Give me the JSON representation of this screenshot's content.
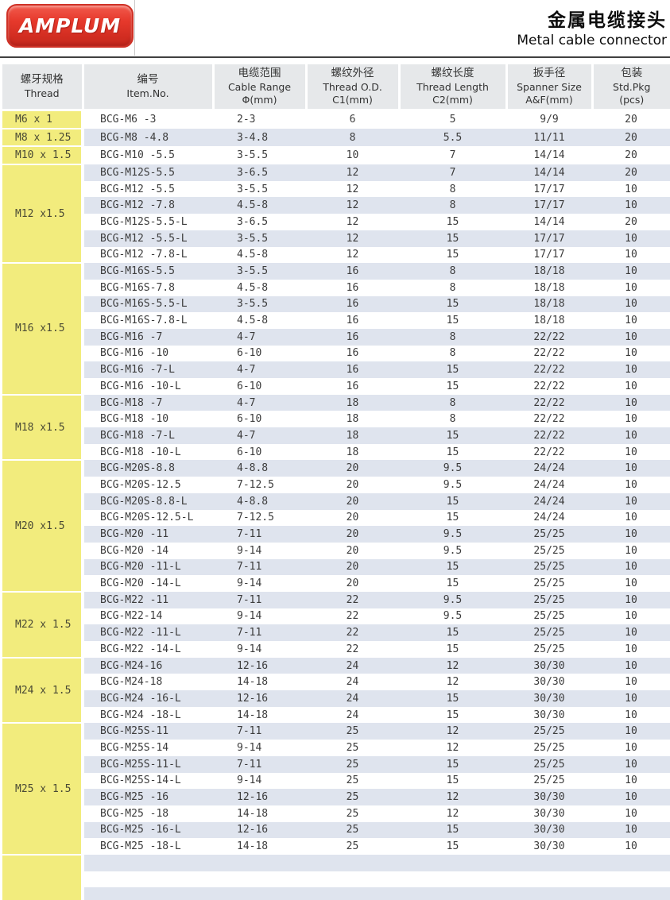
{
  "page": {
    "logo_text": "AMPLUM",
    "title_zh": "金属电缆接头",
    "title_en": "Metal cable connector"
  },
  "colors": {
    "logo_red": "#d92b1f",
    "thread_column_yellow": "#f2ec7d",
    "row_stripe": "#dfe4ee",
    "header_bg": "#e6e8ea"
  },
  "table": {
    "headers": [
      {
        "zh": "螺牙规格",
        "en": "Thread",
        "sub": ""
      },
      {
        "zh": "编号",
        "en": "Item.No.",
        "sub": ""
      },
      {
        "zh": "电缆范围",
        "en": "Cable Range",
        "sub": "Φ(mm)"
      },
      {
        "zh": "螺纹外径",
        "en": "Thread O.D.",
        "sub": "C1(mm)"
      },
      {
        "zh": "螺纹长度",
        "en": "Thread Length",
        "sub": "C2(mm)"
      },
      {
        "zh": "扳手径",
        "en": "Spanner Size",
        "sub": "A&F(mm)"
      },
      {
        "zh": "包装",
        "en": "Std.Pkg",
        "sub": "(pcs)"
      }
    ],
    "groups": [
      {
        "thread": "M6  x 1",
        "rows": [
          [
            "BCG-M6 -3",
            "2-3",
            "6",
            "5",
            "9/9",
            "20"
          ]
        ]
      },
      {
        "thread": "M8  x 1.25",
        "rows": [
          [
            "BCG-M8 -4.8",
            "3-4.8",
            "8",
            "5.5",
            "11/11",
            "20"
          ]
        ]
      },
      {
        "thread": "M10 x 1.5",
        "rows": [
          [
            "BCG-M10 -5.5",
            "3-5.5",
            "10",
            "7",
            "14/14",
            "20"
          ]
        ]
      },
      {
        "thread": "M12 x1.5",
        "rows": [
          [
            "BCG-M12S-5.5",
            "3-6.5",
            "12",
            "7",
            "14/14",
            "20"
          ],
          [
            "BCG-M12 -5.5",
            "3-5.5",
            "12",
            "8",
            "17/17",
            "10"
          ],
          [
            "BCG-M12 -7.8",
            "4.5-8",
            "12",
            "8",
            "17/17",
            "10"
          ],
          [
            "BCG-M12S-5.5-L",
            "3-6.5",
            "12",
            "15",
            "14/14",
            "20"
          ],
          [
            "BCG-M12 -5.5-L",
            "3-5.5",
            "12",
            "15",
            "17/17",
            "10"
          ],
          [
            "BCG-M12 -7.8-L",
            "4.5-8",
            "12",
            "15",
            "17/17",
            "10"
          ]
        ]
      },
      {
        "thread": "M16 x1.5",
        "rows": [
          [
            "BCG-M16S-5.5",
            "3-5.5",
            "16",
            "8",
            "18/18",
            "10"
          ],
          [
            "BCG-M16S-7.8",
            "4.5-8",
            "16",
            "8",
            "18/18",
            "10"
          ],
          [
            "BCG-M16S-5.5-L",
            "3-5.5",
            "16",
            "15",
            "18/18",
            "10"
          ],
          [
            "BCG-M16S-7.8-L",
            "4.5-8",
            "16",
            "15",
            "18/18",
            "10"
          ],
          [
            "BCG-M16 -7",
            "4-7",
            "16",
            "8",
            "22/22",
            "10"
          ],
          [
            "BCG-M16 -10",
            "6-10",
            "16",
            "8",
            "22/22",
            "10"
          ],
          [
            "BCG-M16 -7-L",
            "4-7",
            "16",
            "15",
            "22/22",
            "10"
          ],
          [
            "BCG-M16 -10-L",
            "6-10",
            "16",
            "15",
            "22/22",
            "10"
          ]
        ]
      },
      {
        "thread": "M18 x1.5",
        "rows": [
          [
            "BCG-M18 -7",
            "4-7",
            "18",
            "8",
            "22/22",
            "10"
          ],
          [
            "BCG-M18 -10",
            "6-10",
            "18",
            "8",
            "22/22",
            "10"
          ],
          [
            "BCG-M18 -7-L",
            "4-7",
            "18",
            "15",
            "22/22",
            "10"
          ],
          [
            "BCG-M18 -10-L",
            "6-10",
            "18",
            "15",
            "22/22",
            "10"
          ]
        ]
      },
      {
        "thread": "M20 x1.5",
        "rows": [
          [
            "BCG-M20S-8.8",
            "4-8.8",
            "20",
            "9.5",
            "24/24",
            "10"
          ],
          [
            "BCG-M20S-12.5",
            "7-12.5",
            "20",
            "9.5",
            "24/24",
            "10"
          ],
          [
            "BCG-M20S-8.8-L",
            "4-8.8",
            "20",
            "15",
            "24/24",
            "10"
          ],
          [
            "BCG-M20S-12.5-L",
            "7-12.5",
            "20",
            "15",
            "24/24",
            "10"
          ],
          [
            "BCG-M20 -11",
            "7-11",
            "20",
            "9.5",
            "25/25",
            "10"
          ],
          [
            "BCG-M20 -14",
            "9-14",
            "20",
            "9.5",
            "25/25",
            "10"
          ],
          [
            "BCG-M20 -11-L",
            "7-11",
            "20",
            "15",
            "25/25",
            "10"
          ],
          [
            "BCG-M20 -14-L",
            "9-14",
            "20",
            "15",
            "25/25",
            "10"
          ]
        ]
      },
      {
        "thread": "M22 x 1.5",
        "rows": [
          [
            "BCG-M22 -11",
            "7-11",
            "22",
            "9.5",
            "25/25",
            "10"
          ],
          [
            "BCG-M22-14",
            "9-14",
            "22",
            "9.5",
            "25/25",
            "10"
          ],
          [
            "BCG-M22 -11-L",
            "7-11",
            "22",
            "15",
            "25/25",
            "10"
          ],
          [
            "BCG-M22 -14-L",
            "9-14",
            "22",
            "15",
            "25/25",
            "10"
          ]
        ]
      },
      {
        "thread": "M24 x 1.5",
        "rows": [
          [
            "BCG-M24-16",
            "12-16",
            "24",
            "12",
            "30/30",
            "10"
          ],
          [
            "BCG-M24-18",
            "14-18",
            "24",
            "12",
            "30/30",
            "10"
          ],
          [
            "BCG-M24 -16-L",
            "12-16",
            "24",
            "15",
            "30/30",
            "10"
          ],
          [
            "BCG-M24 -18-L",
            "14-18",
            "24",
            "15",
            "30/30",
            "10"
          ]
        ]
      },
      {
        "thread": "M25 x 1.5",
        "rows": [
          [
            "BCG-M25S-11",
            "7-11",
            "25",
            "12",
            "25/25",
            "10"
          ],
          [
            "BCG-M25S-14",
            "9-14",
            "25",
            "12",
            "25/25",
            "10"
          ],
          [
            "BCG-M25S-11-L",
            "7-11",
            "25",
            "15",
            "25/25",
            "10"
          ],
          [
            "BCG-M25S-14-L",
            "9-14",
            "25",
            "15",
            "25/25",
            "10"
          ],
          [
            "BCG-M25 -16",
            "12-16",
            "25",
            "12",
            "30/30",
            "10"
          ],
          [
            "BCG-M25 -18",
            "14-18",
            "25",
            "12",
            "30/30",
            "10"
          ],
          [
            "BCG-M25 -16-L",
            "12-16",
            "25",
            "15",
            "30/30",
            "10"
          ],
          [
            "BCG-M25 -18-L",
            "14-18",
            "25",
            "15",
            "30/30",
            "10"
          ]
        ]
      },
      {
        "thread": "",
        "rows": [
          [
            "",
            "",
            "",
            "",
            "",
            ""
          ],
          [
            "",
            "",
            "",
            "",
            "",
            ""
          ],
          [
            "",
            "",
            "",
            "",
            "",
            ""
          ]
        ]
      }
    ]
  }
}
